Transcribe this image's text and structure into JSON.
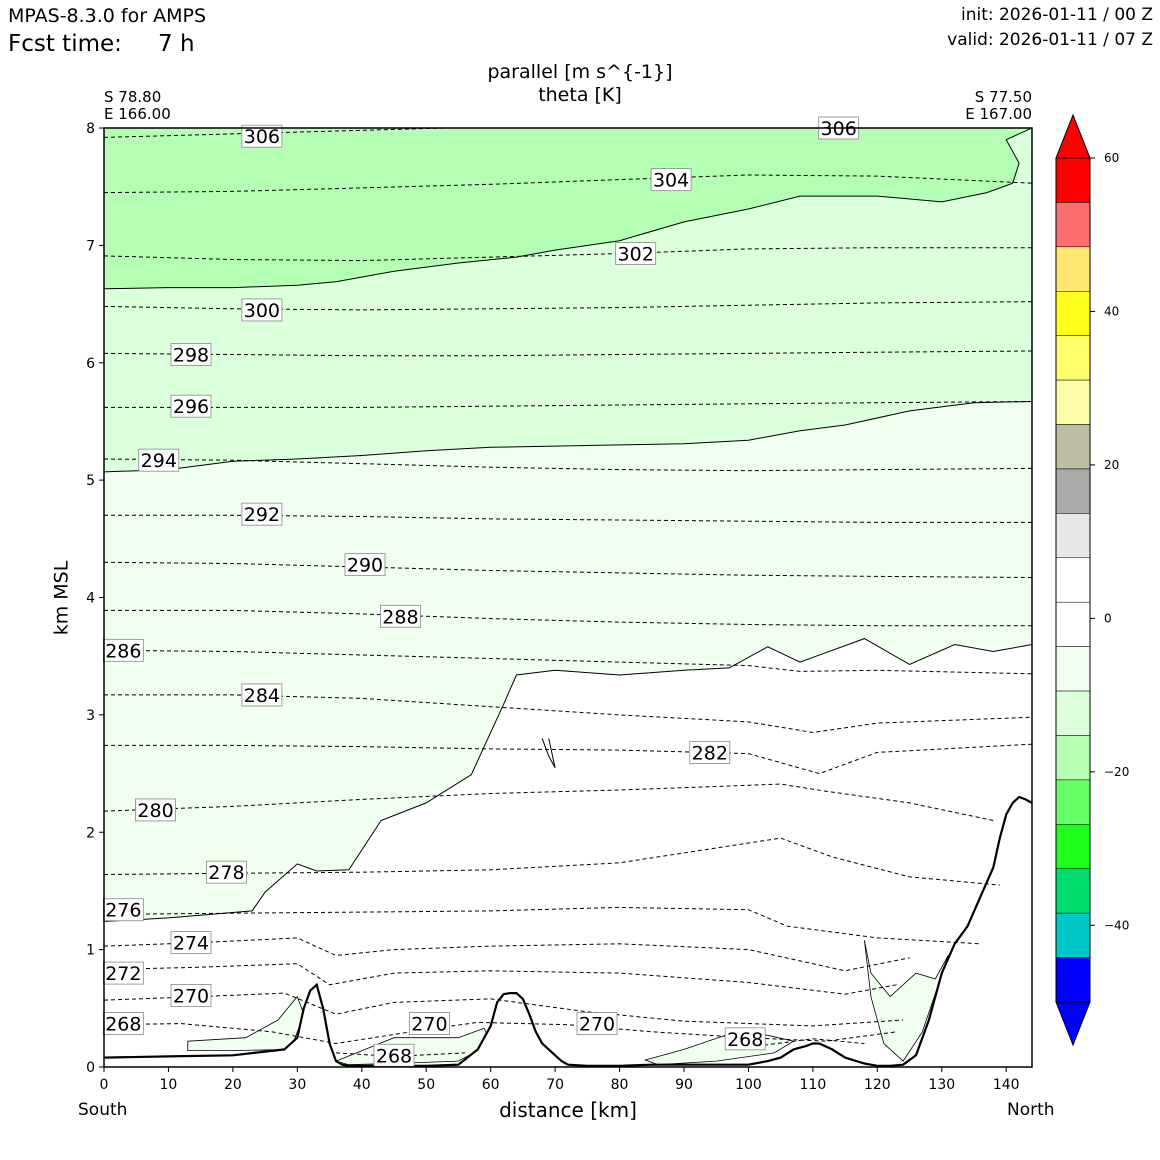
{
  "header": {
    "model": "MPAS-8.3.0 for AMPS",
    "fcst_label": "Fcst time:",
    "fcst_value": "7 h",
    "init": "init: 2026-01-11 / 00 Z",
    "valid": "valid: 2026-01-11 / 07 Z"
  },
  "chart_data": {
    "type": "contour",
    "title_line1": "parallel [m s^{-1}]",
    "title_line2": "theta [K]",
    "xlabel": "distance [km]",
    "ylabel": "km MSL",
    "xlim": [
      0,
      144
    ],
    "ylim": [
      0,
      8
    ],
    "x_ticks": [
      "0",
      "10",
      "20",
      "30",
      "40",
      "50",
      "60",
      "70",
      "80",
      "90",
      "100",
      "110",
      "120",
      "130",
      "140"
    ],
    "y_ticks": [
      "0",
      "1",
      "2",
      "3",
      "4",
      "5",
      "6",
      "7",
      "8"
    ],
    "endpoint_left": {
      "lat": "S 78.80",
      "lon": "E 166.00",
      "dir": "South"
    },
    "endpoint_right": {
      "lat": "S 77.50",
      "lon": "E 167.00",
      "dir": "North"
    },
    "colorbar": {
      "ticks": [
        "60",
        "40",
        "20",
        "0",
        "−20",
        "−40"
      ],
      "tick_values": [
        60,
        40,
        20,
        0,
        -20,
        -40
      ],
      "range": [
        -50,
        60
      ],
      "colors": [
        "#0000ff",
        "#0000ff",
        "#00c8c8",
        "#00dc6e",
        "#1eff1e",
        "#66ff66",
        "#b4ffb4",
        "#dcffdc",
        "#f0fff0",
        "#ffffff",
        "#ffffff",
        "#e8e8e8",
        "#aaaaaa",
        "#bebea5",
        "#ffffaa",
        "#ffff6e",
        "#ffff1e",
        "#ffe66e",
        "#ff6e6e",
        "#ff0000",
        "#ff0000"
      ]
    },
    "theta_labels": [
      {
        "text": "306",
        "x": 24.5,
        "y": 7.93
      },
      {
        "text": "306",
        "x": 114,
        "y": 8.0
      },
      {
        "text": "304",
        "x": 88,
        "y": 7.56
      },
      {
        "text": "302",
        "x": 82.5,
        "y": 6.93
      },
      {
        "text": "300",
        "x": 24.5,
        "y": 6.45
      },
      {
        "text": "298",
        "x": 13.5,
        "y": 6.07
      },
      {
        "text": "296",
        "x": 13.5,
        "y": 5.63
      },
      {
        "text": "294",
        "x": 8.5,
        "y": 5.17
      },
      {
        "text": "292",
        "x": 24.5,
        "y": 4.71
      },
      {
        "text": "290",
        "x": 40.5,
        "y": 4.28
      },
      {
        "text": "288",
        "x": 46,
        "y": 3.84
      },
      {
        "text": "286",
        "x": 3,
        "y": 3.55
      },
      {
        "text": "284",
        "x": 24.5,
        "y": 3.17
      },
      {
        "text": "282",
        "x": 94,
        "y": 2.68
      },
      {
        "text": "280",
        "x": 8,
        "y": 2.19
      },
      {
        "text": "278",
        "x": 19,
        "y": 1.66
      },
      {
        "text": "276",
        "x": 3,
        "y": 1.34
      },
      {
        "text": "274",
        "x": 13.5,
        "y": 1.06
      },
      {
        "text": "272",
        "x": 3,
        "y": 0.8
      },
      {
        "text": "270",
        "x": 13.5,
        "y": 0.61
      },
      {
        "text": "270",
        "x": 50.5,
        "y": 0.37
      },
      {
        "text": "270",
        "x": 76.5,
        "y": 0.37
      },
      {
        "text": "268",
        "x": 3,
        "y": 0.37
      },
      {
        "text": "268",
        "x": 45,
        "y": 0.1
      },
      {
        "text": "268",
        "x": 99.5,
        "y": 0.24
      }
    ],
    "theta_lines": [
      {
        "x": [
          0,
          20,
          40,
          60,
          80,
          100,
          120,
          144
        ],
        "y": [
          7.92,
          7.95,
          7.98,
          8.01,
          8.03,
          8.04,
          8.04,
          8.03
        ]
      },
      {
        "x": [
          0,
          20,
          40,
          60,
          80,
          100,
          120,
          144
        ],
        "y": [
          7.45,
          7.46,
          7.49,
          7.52,
          7.56,
          7.6,
          7.59,
          7.53
        ]
      },
      {
        "x": [
          0,
          20,
          40,
          60,
          80,
          100,
          120,
          144
        ],
        "y": [
          6.91,
          6.88,
          6.87,
          6.9,
          6.93,
          6.97,
          6.98,
          6.98
        ]
      },
      {
        "x": [
          0,
          20,
          40,
          60,
          80,
          100,
          120,
          144
        ],
        "y": [
          6.48,
          6.46,
          6.45,
          6.46,
          6.47,
          6.49,
          6.51,
          6.52
        ]
      },
      {
        "x": [
          0,
          20,
          40,
          60,
          80,
          100,
          120,
          144
        ],
        "y": [
          6.08,
          6.07,
          6.06,
          6.06,
          6.07,
          6.08,
          6.09,
          6.1
        ]
      },
      {
        "x": [
          0,
          20,
          40,
          60,
          80,
          100,
          120,
          144
        ],
        "y": [
          5.62,
          5.62,
          5.62,
          5.63,
          5.64,
          5.65,
          5.66,
          5.67
        ]
      },
      {
        "x": [
          0,
          20,
          40,
          60,
          80,
          100,
          120,
          144
        ],
        "y": [
          5.18,
          5.17,
          5.14,
          5.11,
          5.09,
          5.08,
          5.09,
          5.1
        ]
      },
      {
        "x": [
          0,
          20,
          40,
          60,
          80,
          100,
          120,
          144
        ],
        "y": [
          4.7,
          4.7,
          4.69,
          4.67,
          4.66,
          4.65,
          4.64,
          4.64
        ]
      },
      {
        "x": [
          0,
          20,
          40,
          60,
          80,
          100,
          120,
          144
        ],
        "y": [
          4.3,
          4.29,
          4.26,
          4.23,
          4.21,
          4.19,
          4.18,
          4.17
        ]
      },
      {
        "x": [
          0,
          20,
          40,
          60,
          80,
          100,
          120,
          144
        ],
        "y": [
          3.89,
          3.89,
          3.86,
          3.82,
          3.79,
          3.77,
          3.76,
          3.76
        ]
      },
      {
        "x": [
          0,
          20,
          40,
          60,
          80,
          100,
          108,
          120,
          144
        ],
        "y": [
          3.55,
          3.54,
          3.51,
          3.48,
          3.45,
          3.42,
          3.37,
          3.38,
          3.35
        ]
      },
      {
        "x": [
          0,
          20,
          40,
          60,
          80,
          100,
          110,
          120,
          144
        ],
        "y": [
          3.17,
          3.17,
          3.14,
          3.07,
          3.0,
          2.94,
          2.85,
          2.93,
          2.98
        ]
      },
      {
        "x": [
          0,
          20,
          40,
          60,
          80,
          100,
          111,
          120,
          144
        ],
        "y": [
          2.74,
          2.74,
          2.73,
          2.71,
          2.7,
          2.67,
          2.5,
          2.68,
          2.75
        ]
      },
      {
        "x": [
          0,
          20,
          40,
          60,
          80,
          105,
          112,
          125,
          138
        ],
        "y": [
          2.18,
          2.22,
          2.28,
          2.33,
          2.36,
          2.41,
          2.35,
          2.25,
          2.1
        ]
      },
      {
        "x": [
          0,
          20,
          40,
          60,
          80,
          105,
          113,
          125,
          139
        ],
        "y": [
          1.64,
          1.65,
          1.66,
          1.68,
          1.74,
          1.95,
          1.79,
          1.62,
          1.55
        ]
      },
      {
        "x": [
          0,
          20,
          40,
          60,
          80,
          100,
          106,
          120,
          136
        ],
        "y": [
          1.3,
          1.31,
          1.32,
          1.33,
          1.36,
          1.34,
          1.2,
          1.1,
          1.05
        ]
      },
      {
        "x": [
          0,
          15,
          30,
          36,
          45,
          60,
          80,
          100,
          115,
          125
        ],
        "y": [
          1.03,
          1.06,
          1.1,
          0.95,
          1.0,
          1.03,
          1.05,
          1.0,
          0.82,
          0.93
        ]
      },
      {
        "x": [
          0,
          15,
          30,
          35,
          45,
          60,
          80,
          100,
          115,
          123
        ],
        "y": [
          0.83,
          0.85,
          0.88,
          0.7,
          0.8,
          0.82,
          0.8,
          0.72,
          0.62,
          0.7
        ]
      },
      {
        "x": [
          0,
          15,
          28,
          36,
          45,
          60,
          75,
          90,
          110,
          124
        ],
        "y": [
          0.57,
          0.6,
          0.63,
          0.45,
          0.55,
          0.58,
          0.47,
          0.39,
          0.35,
          0.4
        ]
      },
      {
        "x": [
          0,
          12,
          26,
          36,
          50,
          58,
          72,
          85,
          100,
          112,
          123
        ],
        "y": [
          0.36,
          0.37,
          0.3,
          0.2,
          0.32,
          0.38,
          0.36,
          0.3,
          0.25,
          0.22,
          0.3
        ]
      },
      {
        "x": [
          36,
          45,
          56
        ],
        "y": [
          0.12,
          0.09,
          0.12
        ]
      },
      {
        "x": [
          97,
          103,
          110,
          118
        ],
        "y": [
          0.16,
          0.19,
          0.24,
          0.2
        ]
      }
    ],
    "wind_boundaries": [
      {
        "x": [
          0,
          10,
          20,
          30,
          36,
          45,
          55,
          64,
          70,
          80,
          90,
          100,
          108,
          120,
          130,
          137,
          141,
          142,
          140,
          144
        ],
        "y": [
          6.63,
          6.64,
          6.64,
          6.66,
          6.69,
          6.78,
          6.85,
          6.9,
          6.96,
          7.04,
          7.2,
          7.31,
          7.42,
          7.42,
          7.37,
          7.45,
          7.53,
          7.7,
          7.9,
          8.0
        ]
      },
      {
        "x": [
          0,
          10,
          20,
          30,
          40,
          50,
          60,
          70,
          80,
          90,
          100,
          108,
          115,
          125,
          135,
          144
        ],
        "y": [
          5.07,
          5.09,
          5.16,
          5.18,
          5.21,
          5.25,
          5.28,
          5.29,
          5.3,
          5.31,
          5.34,
          5.42,
          5.47,
          5.59,
          5.66,
          5.67
        ]
      },
      {
        "x": [
          0,
          10,
          23,
          25,
          30,
          33,
          38,
          43,
          50,
          57,
          62,
          64,
          70,
          80,
          90,
          97,
          103,
          108,
          112,
          118,
          125,
          132,
          138,
          144
        ],
        "y": [
          1.24,
          1.27,
          1.33,
          1.49,
          1.73,
          1.67,
          1.68,
          2.1,
          2.25,
          2.49,
          3.09,
          3.34,
          3.38,
          3.34,
          3.38,
          3.4,
          3.58,
          3.45,
          3.53,
          3.65,
          3.43,
          3.6,
          3.54,
          3.6
        ]
      },
      {
        "x": [
          68,
          69,
          70,
          69
        ],
        "y": [
          2.8,
          2.65,
          2.55,
          2.8
        ]
      }
    ],
    "terrain": {
      "x": [
        0,
        10,
        20,
        28,
        30,
        31,
        32,
        33,
        34,
        35,
        36,
        37,
        38,
        40,
        45,
        50,
        55,
        58,
        60,
        61,
        62,
        63,
        64,
        65,
        66,
        67,
        68,
        69,
        70,
        71,
        72,
        75,
        80,
        85,
        90,
        95,
        100,
        103,
        105,
        107,
        109,
        110,
        111,
        113,
        115,
        118,
        120,
        122,
        124,
        126,
        128,
        130,
        132,
        134,
        136,
        138,
        139,
        140,
        141,
        142,
        143,
        144
      ],
      "y": [
        0.08,
        0.09,
        0.1,
        0.15,
        0.25,
        0.5,
        0.65,
        0.7,
        0.5,
        0.2,
        0.05,
        0.02,
        0.01,
        0.01,
        0.01,
        0.01,
        0.02,
        0.15,
        0.35,
        0.55,
        0.62,
        0.63,
        0.63,
        0.58,
        0.45,
        0.3,
        0.2,
        0.15,
        0.1,
        0.05,
        0.02,
        0.01,
        0.01,
        0.02,
        0.02,
        0.02,
        0.02,
        0.05,
        0.08,
        0.15,
        0.18,
        0.2,
        0.2,
        0.15,
        0.08,
        0.03,
        0.01,
        0.01,
        0.02,
        0.1,
        0.4,
        0.8,
        1.05,
        1.2,
        1.45,
        1.7,
        1.95,
        2.15,
        2.25,
        2.3,
        2.28,
        2.25
      ]
    }
  }
}
